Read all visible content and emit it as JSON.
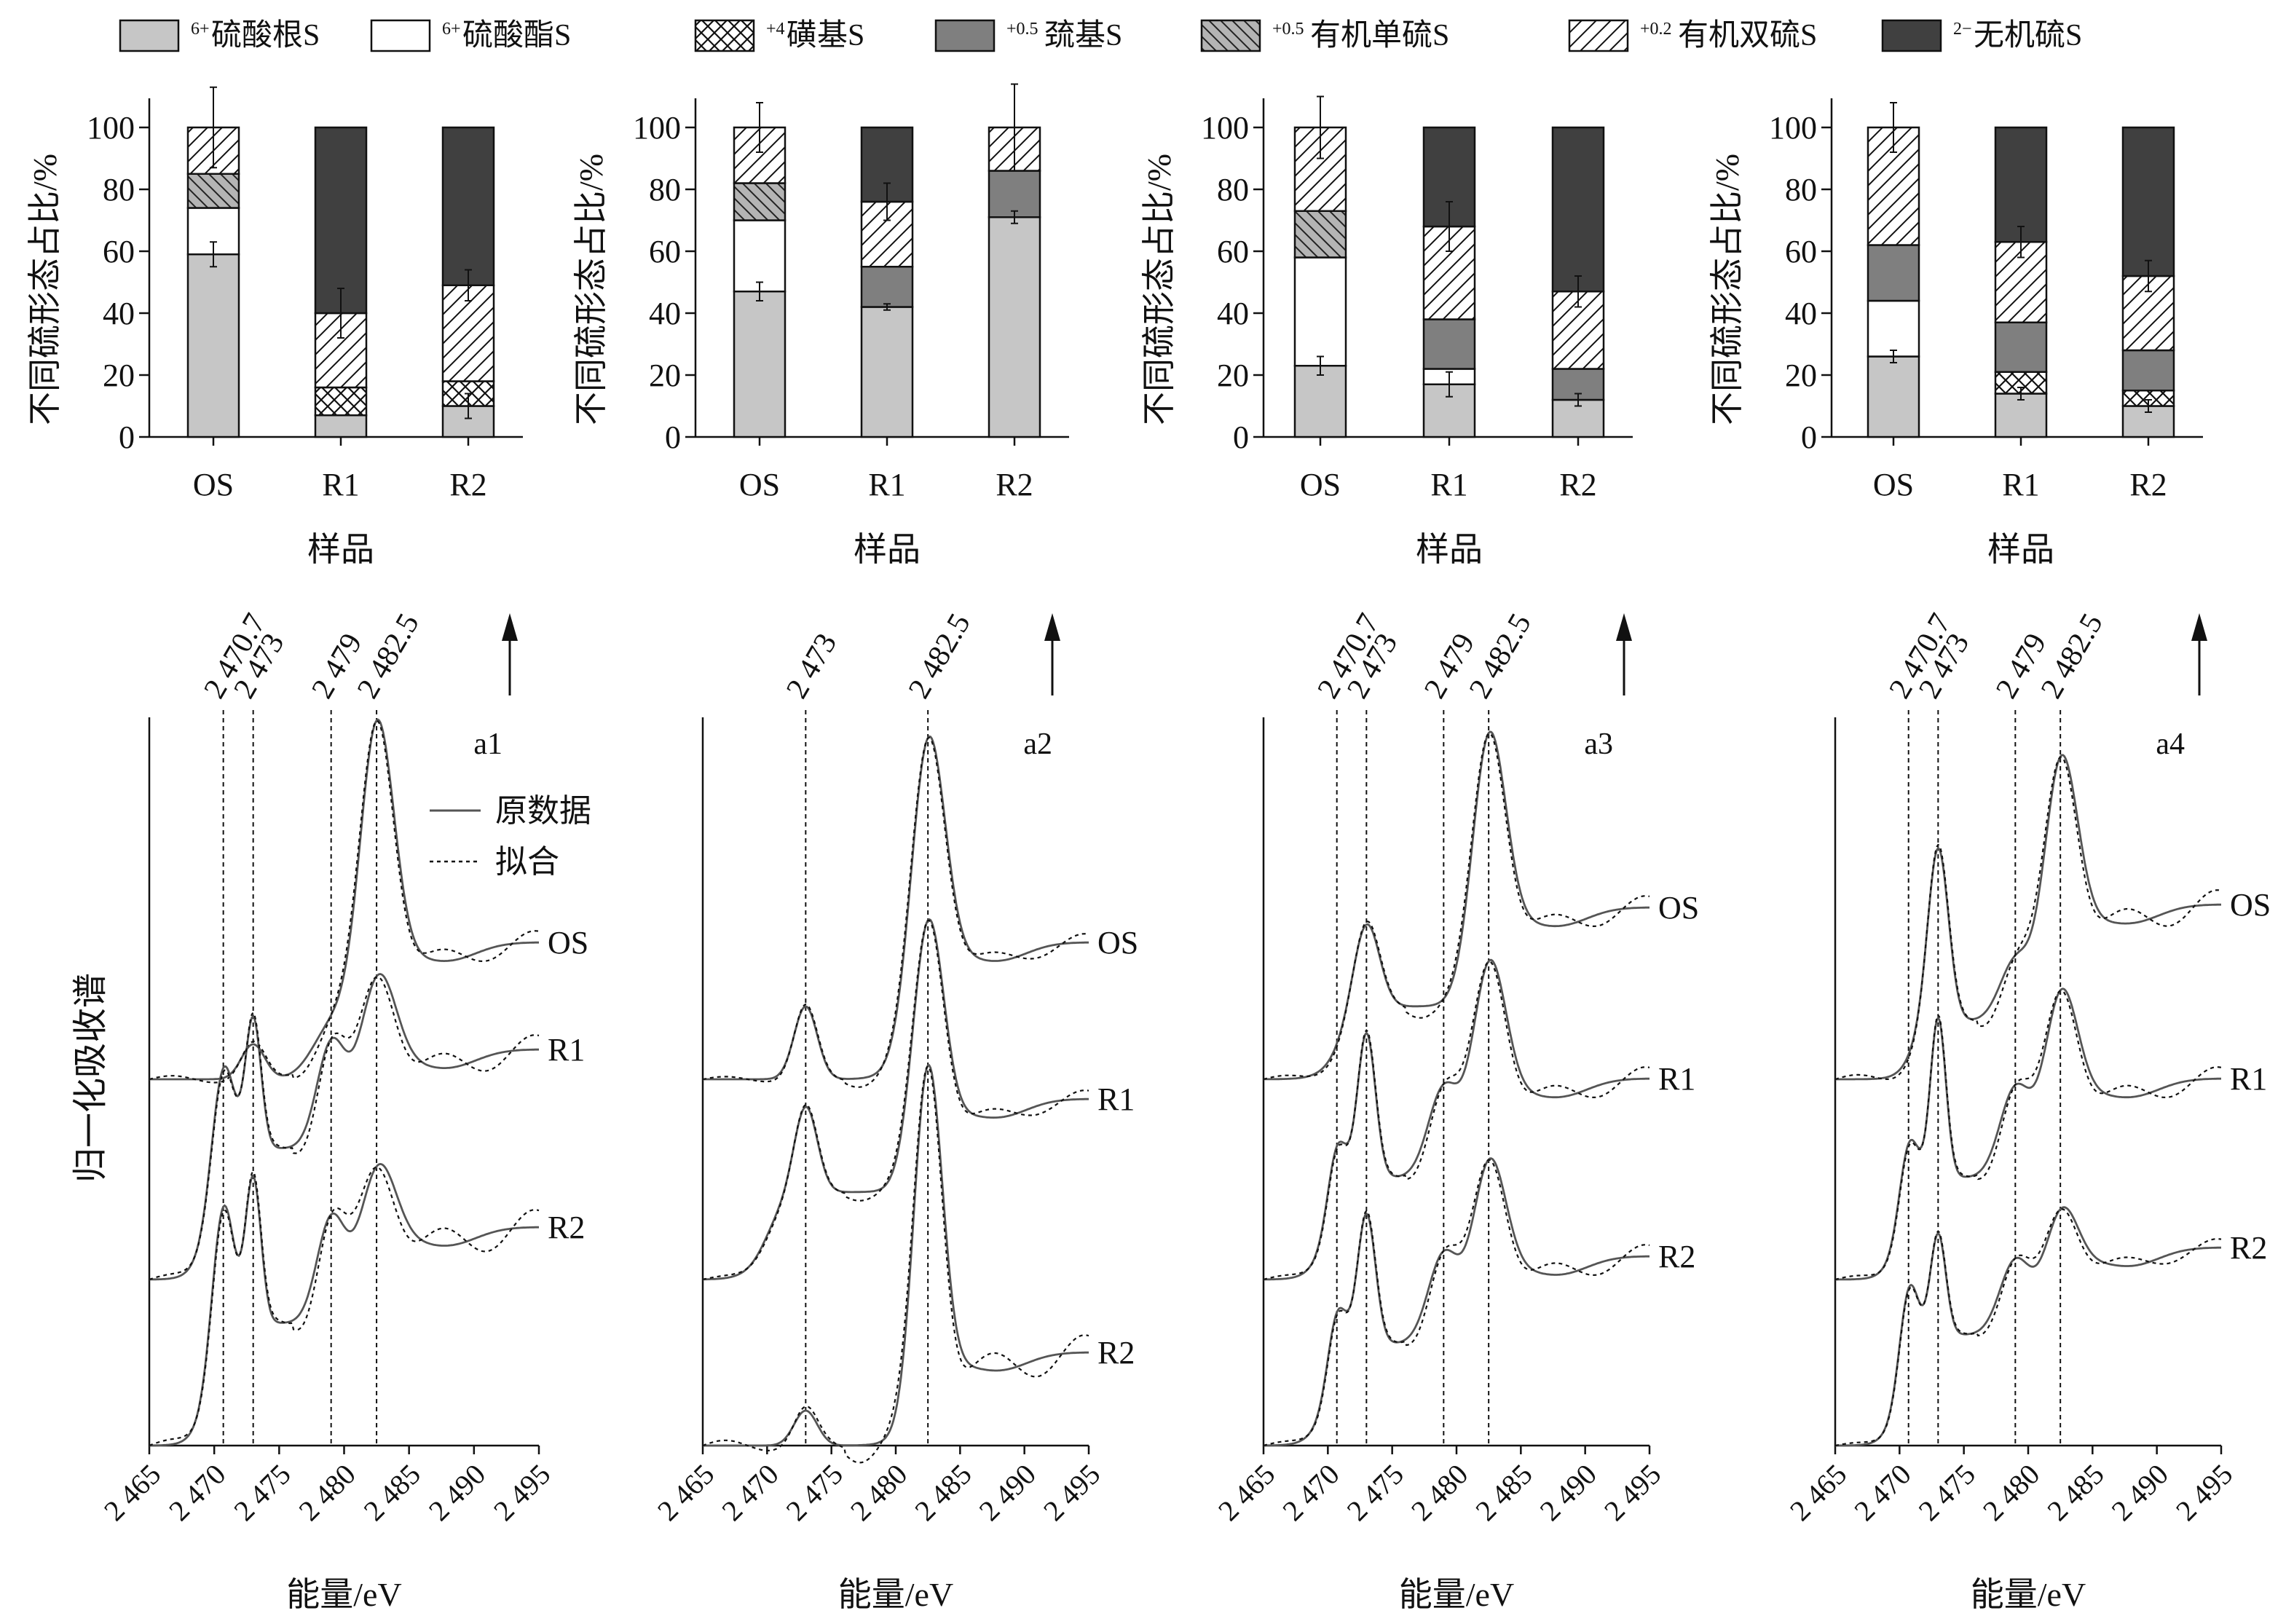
{
  "legend": [
    {
      "sup": "6+",
      "label": "硫酸根S",
      "pattern": "sulfate"
    },
    {
      "sup": "6+",
      "label": "硫酸酯S",
      "pattern": "ester"
    },
    {
      "sup": "+4",
      "label": "磺基S",
      "pattern": "sulfonate"
    },
    {
      "sup": "+0.5",
      "label": "巯基S",
      "pattern": "thiol"
    },
    {
      "sup": "+0.5",
      "label": "有机单硫S",
      "pattern": "monosulfide"
    },
    {
      "sup": "+0.2",
      "label": "有机双硫S",
      "pattern": "disulfide"
    },
    {
      "sup": "2−",
      "label": "无机硫S",
      "pattern": "inorganic"
    }
  ],
  "colors": {
    "sulfate": "#c6c6c6",
    "ester": "#ffffff",
    "thiol": "#7f7f7f",
    "monosulfide_bg": "#b4b4b4",
    "inorganic": "#404040",
    "axis": "#111111",
    "line": "#555555"
  },
  "bar_axis": {
    "ylabel": "不同硫形态占比/%",
    "xlabel": "样品",
    "ylim": [
      0,
      100
    ],
    "yticks": [
      0,
      20,
      40,
      60,
      80,
      100
    ]
  },
  "spec_axis": {
    "ylabel": "归一化吸收谱",
    "xlabel": "能量/eV",
    "xlim": [
      2465,
      2495
    ],
    "xtick_labels": [
      "2 465",
      "2 470",
      "2 475",
      "2 480",
      "2 485",
      "2 490",
      "2 495"
    ],
    "fit_legend": {
      "raw": "原数据",
      "fit": "拟合"
    }
  },
  "chart_data": [
    {
      "type": "bar",
      "stacked": true,
      "panel": "bar-1",
      "categories": [
        "OS",
        "R1",
        "R2"
      ],
      "series": [
        {
          "name": "硫酸根S",
          "values": [
            59,
            7,
            10
          ]
        },
        {
          "name": "硫酸酯S",
          "values": [
            15,
            0,
            0
          ]
        },
        {
          "name": "磺基S",
          "values": [
            0,
            9,
            8
          ]
        },
        {
          "name": "巯基S",
          "values": [
            0,
            0,
            0
          ]
        },
        {
          "name": "有机单硫S",
          "values": [
            11,
            0,
            0
          ]
        },
        {
          "name": "有机双硫S",
          "values": [
            15,
            24,
            31
          ]
        },
        {
          "name": "无机硫S",
          "values": [
            0,
            60,
            51
          ]
        }
      ],
      "errors": [
        [
          4,
          0,
          4
        ],
        [
          13,
          8,
          5
        ]
      ]
    },
    {
      "type": "bar",
      "stacked": true,
      "panel": "bar-2",
      "categories": [
        "OS",
        "R1",
        "R2"
      ],
      "series": [
        {
          "name": "硫酸根S",
          "values": [
            47,
            42,
            71
          ]
        },
        {
          "name": "硫酸酯S",
          "values": [
            23,
            0,
            0
          ]
        },
        {
          "name": "磺基S",
          "values": [
            0,
            0,
            0
          ]
        },
        {
          "name": "巯基S",
          "values": [
            0,
            13,
            15
          ]
        },
        {
          "name": "有机单硫S",
          "values": [
            12,
            0,
            0
          ]
        },
        {
          "name": "有机双硫S",
          "values": [
            18,
            21,
            14
          ]
        },
        {
          "name": "无机硫S",
          "values": [
            0,
            24,
            0
          ]
        }
      ],
      "errors": [
        [
          3,
          1,
          2
        ],
        [
          8,
          6,
          14
        ]
      ]
    },
    {
      "type": "bar",
      "stacked": true,
      "panel": "bar-3",
      "categories": [
        "OS",
        "R1",
        "R2"
      ],
      "series": [
        {
          "name": "硫酸根S",
          "values": [
            23,
            17,
            12
          ]
        },
        {
          "name": "硫酸酯S",
          "values": [
            35,
            5,
            0
          ]
        },
        {
          "name": "磺基S",
          "values": [
            0,
            0,
            0
          ]
        },
        {
          "name": "巯基S",
          "values": [
            0,
            16,
            10
          ]
        },
        {
          "name": "有机单硫S",
          "values": [
            15,
            0,
            0
          ]
        },
        {
          "name": "有机双硫S",
          "values": [
            27,
            30,
            25
          ]
        },
        {
          "name": "无机硫S",
          "values": [
            0,
            32,
            53
          ]
        }
      ],
      "errors": [
        [
          3,
          4,
          2
        ],
        [
          10,
          8,
          5
        ]
      ]
    },
    {
      "type": "bar",
      "stacked": true,
      "panel": "bar-4",
      "categories": [
        "OS",
        "R1",
        "R2"
      ],
      "series": [
        {
          "name": "硫酸根S",
          "values": [
            26,
            14,
            10
          ]
        },
        {
          "name": "硫酸酯S",
          "values": [
            18,
            0,
            0
          ]
        },
        {
          "name": "磺基S",
          "values": [
            0,
            7,
            5
          ]
        },
        {
          "name": "巯基S",
          "values": [
            18,
            16,
            13
          ]
        },
        {
          "name": "有机单硫S",
          "values": [
            0,
            0,
            0
          ]
        },
        {
          "name": "有机双硫S",
          "values": [
            38,
            26,
            24
          ]
        },
        {
          "name": "无机硫S",
          "values": [
            0,
            37,
            48
          ]
        }
      ],
      "errors": [
        [
          2,
          2,
          2
        ],
        [
          8,
          5,
          5
        ]
      ]
    },
    {
      "type": "line",
      "panel": "a1",
      "xlim": [
        2465,
        2495
      ],
      "reference_lines": [
        2470.7,
        2473,
        2479,
        2482.5
      ],
      "reference_labels": [
        "2 470.7",
        "2 473",
        "2 479",
        "2 482.5"
      ],
      "series": [
        {
          "name": "OS",
          "offset": 2.35,
          "peaks": [
            [
              2473,
              0.12,
              0.9
            ],
            [
              2479,
              0.15,
              1.5
            ],
            [
              2482.5,
              1.0,
              1.3
            ]
          ],
          "edge": [
            2480,
            0.15,
            1.0
          ],
          "tail": 0.32,
          "fit_dev": 0.04
        },
        {
          "name": "R1",
          "offset": 1.18,
          "peaks": [
            [
              2470.7,
              0.33,
              0.8
            ],
            [
              2473,
              0.45,
              0.6
            ],
            [
              2479,
              0.35,
              1.1
            ],
            [
              2482.5,
              0.5,
              1.4
            ]
          ],
          "edge": [
            2469.5,
            0.45,
            0.6
          ],
          "tail": 0.34,
          "fit_dev": 0.05
        },
        {
          "name": "R2",
          "offset": 0.0,
          "peaks": [
            [
              2470.7,
              0.45,
              0.8
            ],
            [
              2473,
              0.5,
              0.6
            ],
            [
              2479,
              0.35,
              1.1
            ],
            [
              2482.5,
              0.45,
              1.4
            ]
          ],
          "edge": [
            2469.5,
            0.42,
            0.6
          ],
          "tail": 0.33,
          "fit_dev": 0.06
        }
      ]
    },
    {
      "type": "line",
      "panel": "a2",
      "xlim": [
        2465,
        2495
      ],
      "reference_lines": [
        2473,
        2482.5
      ],
      "reference_labels": [
        "2 473",
        "2 482.5"
      ],
      "series": [
        {
          "name": "OS",
          "offset": 2.35,
          "peaks": [
            [
              2473,
              0.25,
              0.9
            ],
            [
              2482.5,
              0.95,
              1.3
            ]
          ],
          "edge": [
            2480.5,
            0.15,
            0.8
          ],
          "tail": 0.32,
          "fit_dev": 0.03
        },
        {
          "name": "R1",
          "offset": 1.18,
          "peaks": [
            [
              2473,
              0.3,
              0.9
            ],
            [
              2482.5,
              0.85,
              1.2
            ]
          ],
          "edge": [
            2470,
            0.3,
            0.8
          ],
          "tail": 0.32,
          "fit_dev": 0.03
        },
        {
          "name": "R2",
          "offset": 0.0,
          "peaks": [
            [
              2473,
              0.12,
              0.9
            ],
            [
              2482.5,
              1.15,
              1.1
            ]
          ],
          "edge": [
            2481,
            0.12,
            0.8
          ],
          "tail": 0.2,
          "fit_dev": 0.06
        }
      ]
    },
    {
      "type": "line",
      "panel": "a3",
      "xlim": [
        2465,
        2495
      ],
      "reference_lines": [
        2470.7,
        2473,
        2479,
        2482.5
      ],
      "reference_labels": [
        "2 470.7",
        "2 473",
        "2 479",
        "2 482.5"
      ],
      "series": [
        {
          "name": "OS",
          "offset": 2.35,
          "peaks": [
            [
              2473,
              0.3,
              1.0
            ],
            [
              2482.5,
              0.85,
              1.3
            ]
          ],
          "edge": [
            2471,
            0.25,
            0.8
          ],
          "tail": 0.34,
          "fit_dev": 0.04
        },
        {
          "name": "R1",
          "offset": 1.18,
          "peaks": [
            [
              2470.7,
              0.2,
              0.7
            ],
            [
              2473,
              0.5,
              0.7
            ],
            [
              2479,
              0.3,
              1.2
            ],
            [
              2482.5,
              0.65,
              1.3
            ]
          ],
          "edge": [
            2470,
            0.35,
            0.7
          ],
          "tail": 0.34,
          "fit_dev": 0.04
        },
        {
          "name": "R2",
          "offset": 0.0,
          "peaks": [
            [
              2470.7,
              0.2,
              0.7
            ],
            [
              2473,
              0.45,
              0.7
            ],
            [
              2479,
              0.3,
              1.2
            ],
            [
              2482.5,
              0.55,
              1.3
            ]
          ],
          "edge": [
            2470,
            0.35,
            0.7
          ],
          "tail": 0.3,
          "fit_dev": 0.04
        }
      ]
    },
    {
      "type": "line",
      "panel": "a4",
      "xlim": [
        2465,
        2495
      ],
      "reference_lines": [
        2470.7,
        2473,
        2479,
        2482.5
      ],
      "reference_labels": [
        "2 470.7",
        "2 473",
        "2 479",
        "2 482.5"
      ],
      "series": [
        {
          "name": "OS",
          "offset": 2.35,
          "peaks": [
            [
              2473,
              0.6,
              0.8
            ],
            [
              2479,
              0.2,
              1.2
            ],
            [
              2482.5,
              0.8,
              1.3
            ]
          ],
          "edge": [
            2471,
            0.2,
            0.6
          ],
          "tail": 0.4,
          "fit_dev": 0.05
        },
        {
          "name": "R1",
          "offset": 1.18,
          "peaks": [
            [
              2470.7,
              0.2,
              0.7
            ],
            [
              2473,
              0.55,
              0.6
            ],
            [
              2479,
              0.3,
              1.2
            ],
            [
              2482.5,
              0.55,
              1.3
            ]
          ],
          "edge": [
            2470,
            0.35,
            0.6
          ],
          "tail": 0.34,
          "fit_dev": 0.04
        },
        {
          "name": "R2",
          "offset": 0.0,
          "peaks": [
            [
              2470.7,
              0.25,
              0.7
            ],
            [
              2473,
              0.35,
              0.6
            ],
            [
              2479,
              0.25,
              1.2
            ],
            [
              2482.5,
              0.35,
              1.3
            ]
          ],
          "edge": [
            2470,
            0.38,
            0.6
          ],
          "tail": 0.3,
          "fit_dev": 0.03
        }
      ]
    }
  ]
}
